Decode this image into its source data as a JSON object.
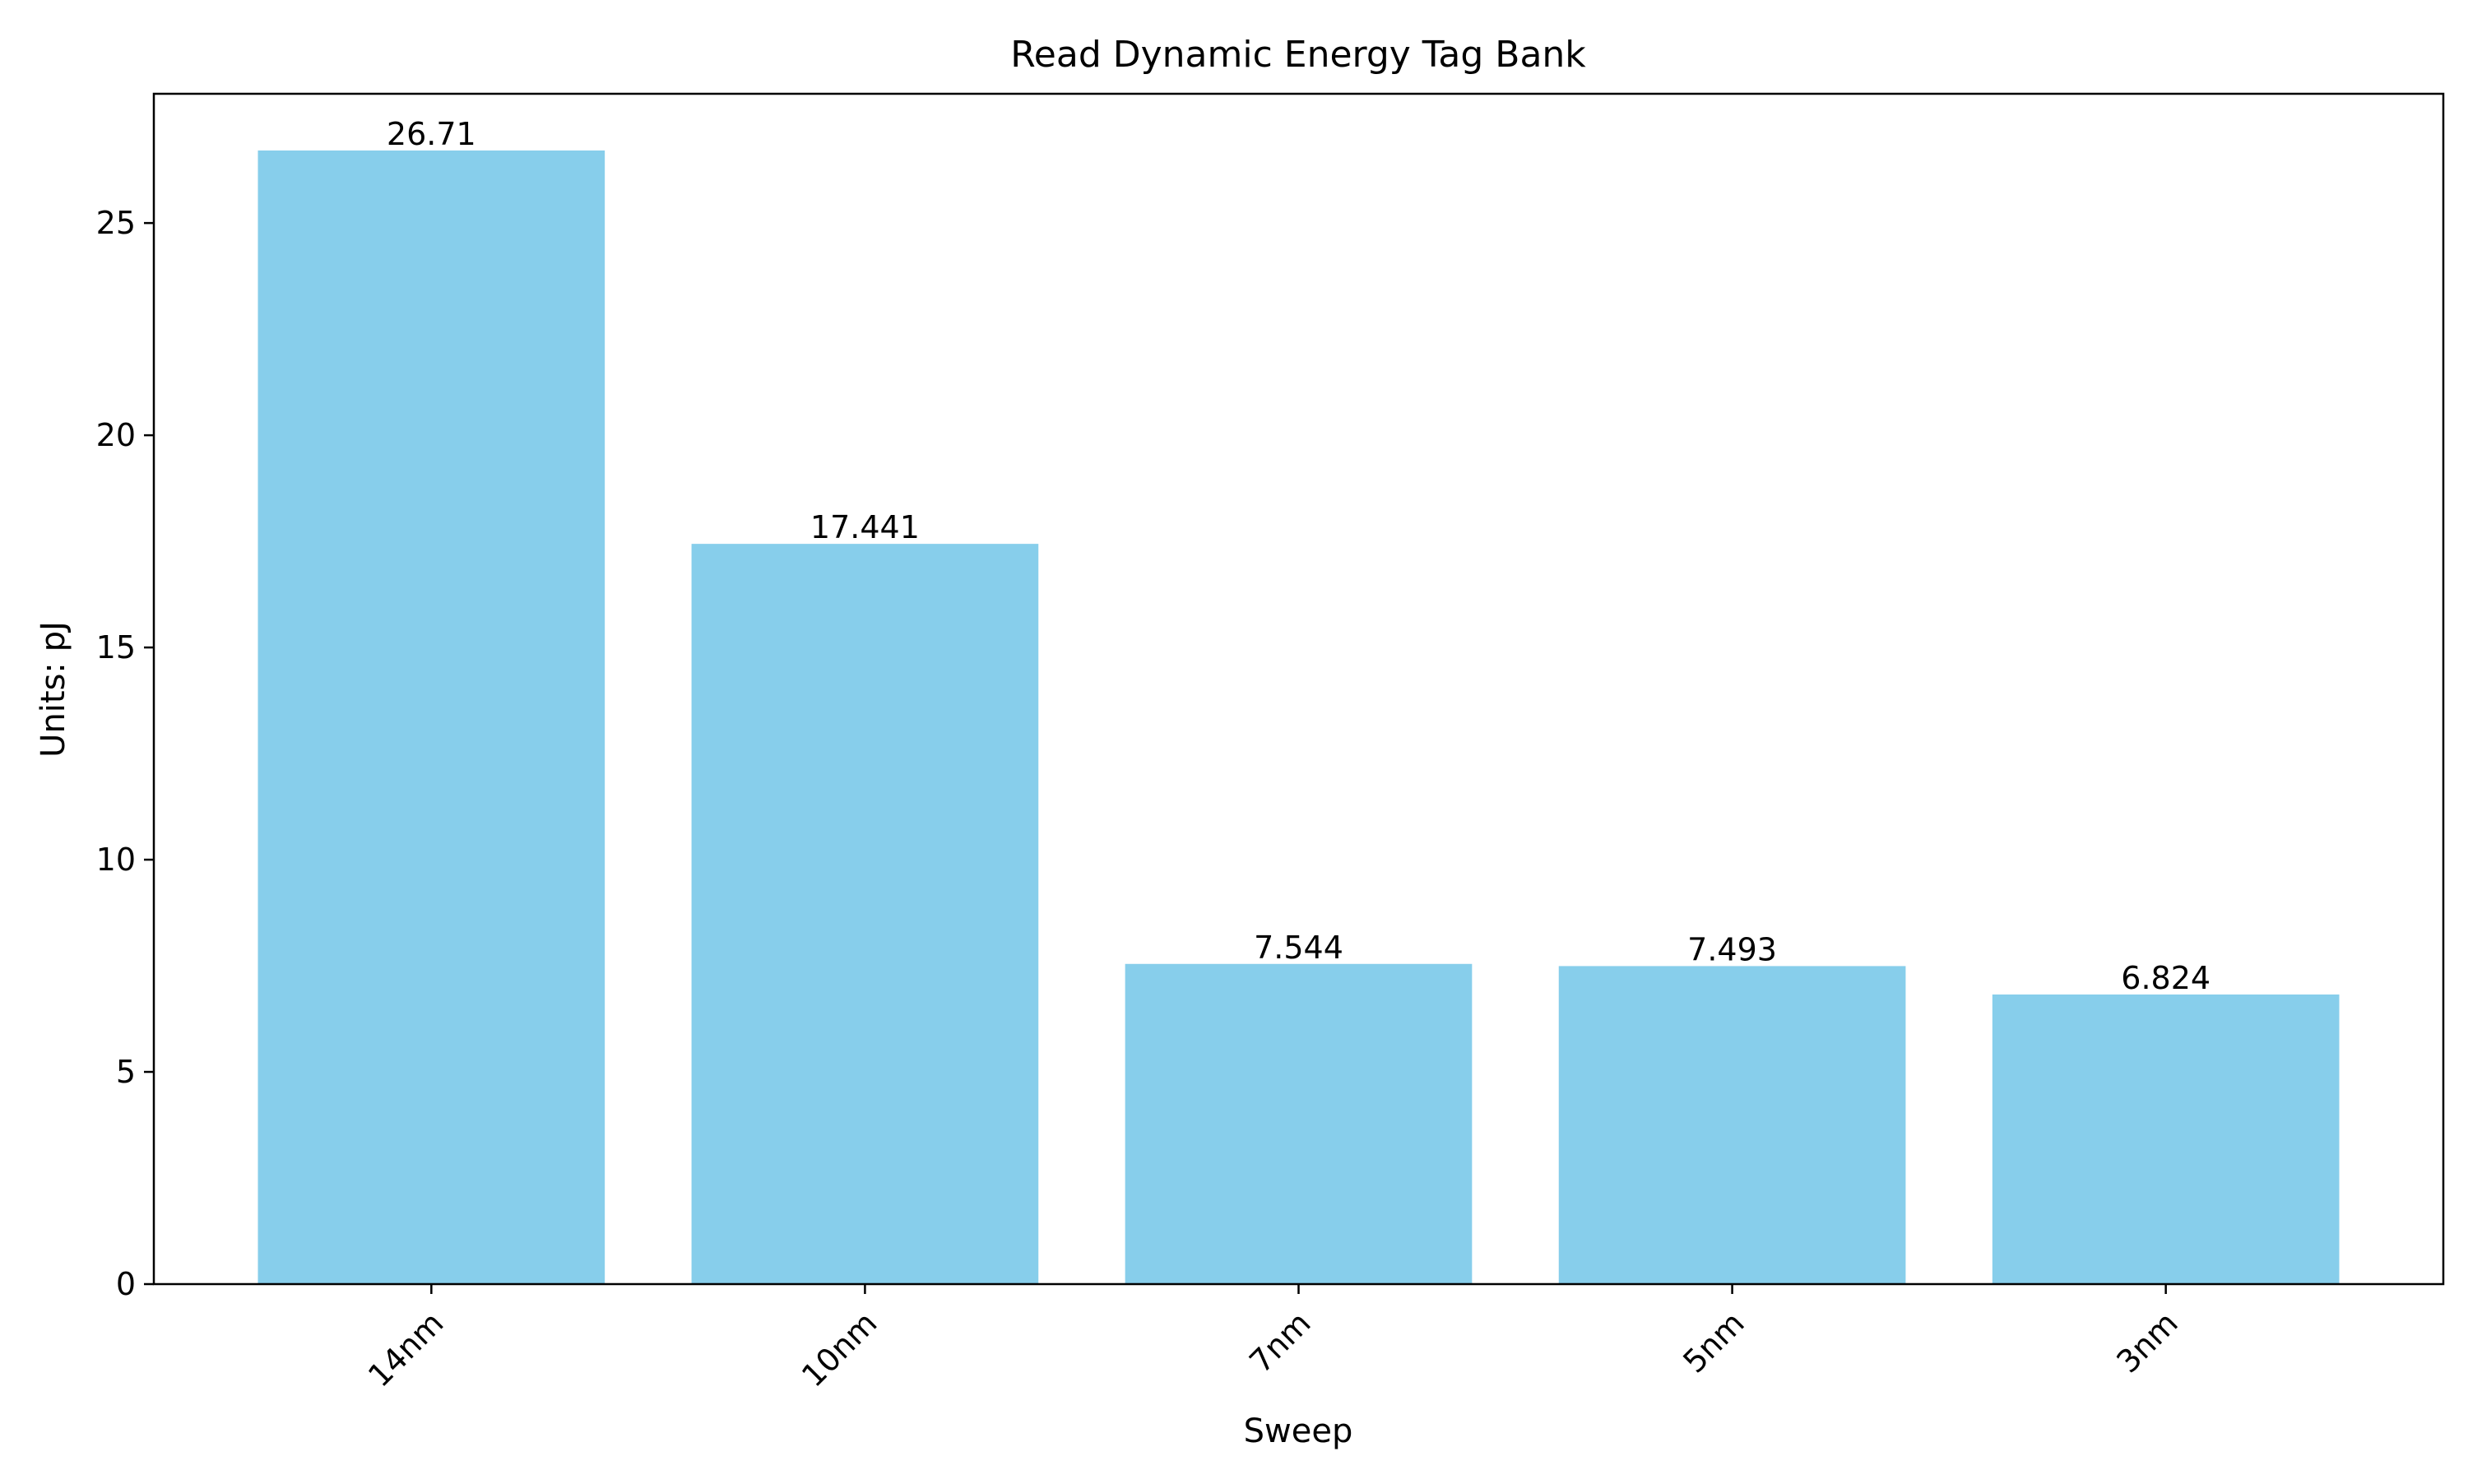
{
  "chart_data": {
    "type": "bar",
    "title": "Read Dynamic Energy Tag Bank",
    "xlabel": "Sweep",
    "ylabel": "Units: pJ",
    "categories": [
      "14nm",
      "10nm",
      "7nm",
      "5nm",
      "3nm"
    ],
    "values": [
      26.71,
      17.441,
      7.544,
      7.493,
      6.824
    ],
    "value_labels": [
      "26.71",
      "17.441",
      "7.544",
      "7.493",
      "6.824"
    ],
    "ylim": [
      0,
      28.0455
    ],
    "yticks": [
      0,
      5,
      10,
      15,
      20,
      25
    ],
    "ytick_labels": [
      "0",
      "5",
      "10",
      "15",
      "20",
      "25"
    ],
    "grid": false,
    "legend": "none",
    "bar_color": "#87CEEB",
    "tick_label_rotation": "45"
  }
}
